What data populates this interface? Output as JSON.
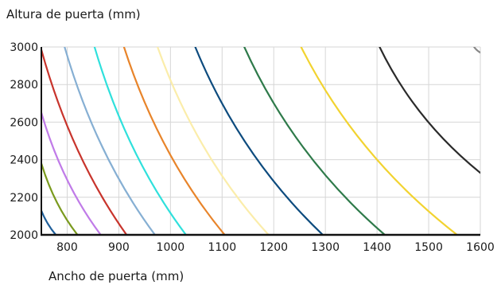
{
  "chart_data": {
    "type": "line",
    "title": "",
    "ylabel": "Altura de puerta (mm)",
    "xlabel": "Ancho de puerta (mm)",
    "xlim": [
      750,
      1600
    ],
    "ylim": [
      2000,
      3000
    ],
    "xticks": [
      "800",
      "900",
      "1000",
      "1100",
      "1200",
      "1300",
      "1400",
      "1500",
      "1600"
    ],
    "yticks": [
      "2000",
      "2200",
      "2400",
      "2600",
      "2800",
      "3000"
    ],
    "grid": true,
    "legend": "none",
    "series": [
      {
        "color": "#1f5f9a",
        "points": [
          [
            745,
            2165
          ],
          [
            778,
            2000
          ]
        ]
      },
      {
        "color": "#7a9a1e",
        "points": [
          [
            750,
            2380
          ],
          [
            820,
            2000
          ]
        ]
      },
      {
        "color": "#c07be8",
        "points": [
          [
            750,
            2650
          ],
          [
            865,
            2000
          ]
        ]
      },
      {
        "color": "#c8342c",
        "points": [
          [
            750,
            2985
          ],
          [
            915,
            2000
          ]
        ]
      },
      {
        "color": "#86afd3",
        "points": [
          [
            795,
            3000
          ],
          [
            970,
            2000
          ]
        ]
      },
      {
        "color": "#2fe0dc",
        "points": [
          [
            853,
            3000
          ],
          [
            1030,
            2000
          ]
        ]
      },
      {
        "color": "#e8842a",
        "points": [
          [
            910,
            3000
          ],
          [
            1105,
            2000
          ]
        ]
      },
      {
        "color": "#fbedaa",
        "points": [
          [
            975,
            3000
          ],
          [
            1190,
            2000
          ]
        ]
      },
      {
        "color": "#0d4b7e",
        "points": [
          [
            1048,
            3000
          ],
          [
            1295,
            2000
          ]
        ]
      },
      {
        "color": "#2e7a4a",
        "points": [
          [
            1143,
            3000
          ],
          [
            1415,
            2000
          ]
        ]
      },
      {
        "color": "#f2d330",
        "points": [
          [
            1253,
            3000
          ],
          [
            1555,
            2000
          ]
        ]
      },
      {
        "color": "#2a2a2a",
        "points": [
          [
            1405,
            3000
          ],
          [
            1600,
            2330
          ]
        ]
      },
      {
        "color": "#888888",
        "points": [
          [
            1588,
            3000
          ],
          [
            1600,
            2970
          ]
        ]
      }
    ]
  }
}
